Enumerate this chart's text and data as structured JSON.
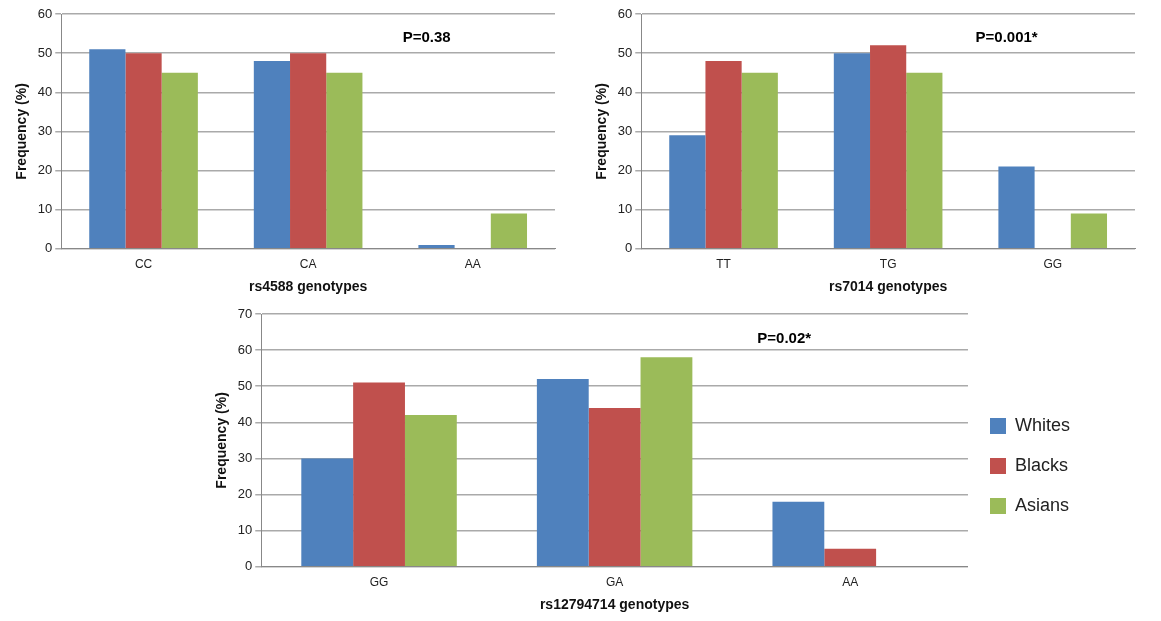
{
  "chart_data": [
    {
      "type": "bar",
      "categories": [
        "CC",
        "CA",
        "AA"
      ],
      "xlabel": "rs4588 genotypes",
      "ylabel": "Frequency (%)",
      "ylim": [
        0,
        60
      ],
      "yticks": [
        0,
        10,
        20,
        30,
        40,
        50,
        60
      ],
      "grid": "y",
      "legend": false,
      "annotations": [
        "P=0.38"
      ],
      "series": [
        {
          "color": "#4f81bd",
          "values": [
            51,
            48,
            1
          ]
        },
        {
          "color": "#c0504d",
          "values": [
            50,
            50,
            0
          ]
        },
        {
          "color": "#9bbb59",
          "values": [
            45,
            45,
            9
          ]
        }
      ]
    },
    {
      "type": "bar",
      "categories": [
        "TT",
        "TG",
        "GG"
      ],
      "xlabel": "rs7014 genotypes",
      "ylabel": "Frequency (%)",
      "ylim": [
        0,
        60
      ],
      "yticks": [
        0,
        10,
        20,
        30,
        40,
        50,
        60
      ],
      "grid": "y",
      "legend": false,
      "annotations": [
        "P=0.001*"
      ],
      "series": [
        {
          "color": "#4f81bd",
          "values": [
            29,
            50,
            21
          ]
        },
        {
          "color": "#c0504d",
          "values": [
            48,
            52,
            0
          ]
        },
        {
          "color": "#9bbb59",
          "values": [
            45,
            45,
            9
          ]
        }
      ]
    },
    {
      "type": "bar",
      "categories": [
        "GG",
        "GA",
        "AA"
      ],
      "xlabel": "rs12794714 genotypes",
      "ylabel": "Frequency (%)",
      "ylim": [
        0,
        70
      ],
      "yticks": [
        0,
        10,
        20,
        30,
        40,
        50,
        60,
        70
      ],
      "grid": "y",
      "legend": "right",
      "annotations": [
        "P=0.02*"
      ],
      "series": [
        {
          "name": "Whites",
          "color": "#4f81bd",
          "values": [
            30,
            52,
            18
          ]
        },
        {
          "name": "Blacks",
          "color": "#c0504d",
          "values": [
            51,
            44,
            5
          ]
        },
        {
          "name": "Asians",
          "color": "#9bbb59",
          "values": [
            42,
            58,
            0
          ]
        }
      ]
    }
  ]
}
